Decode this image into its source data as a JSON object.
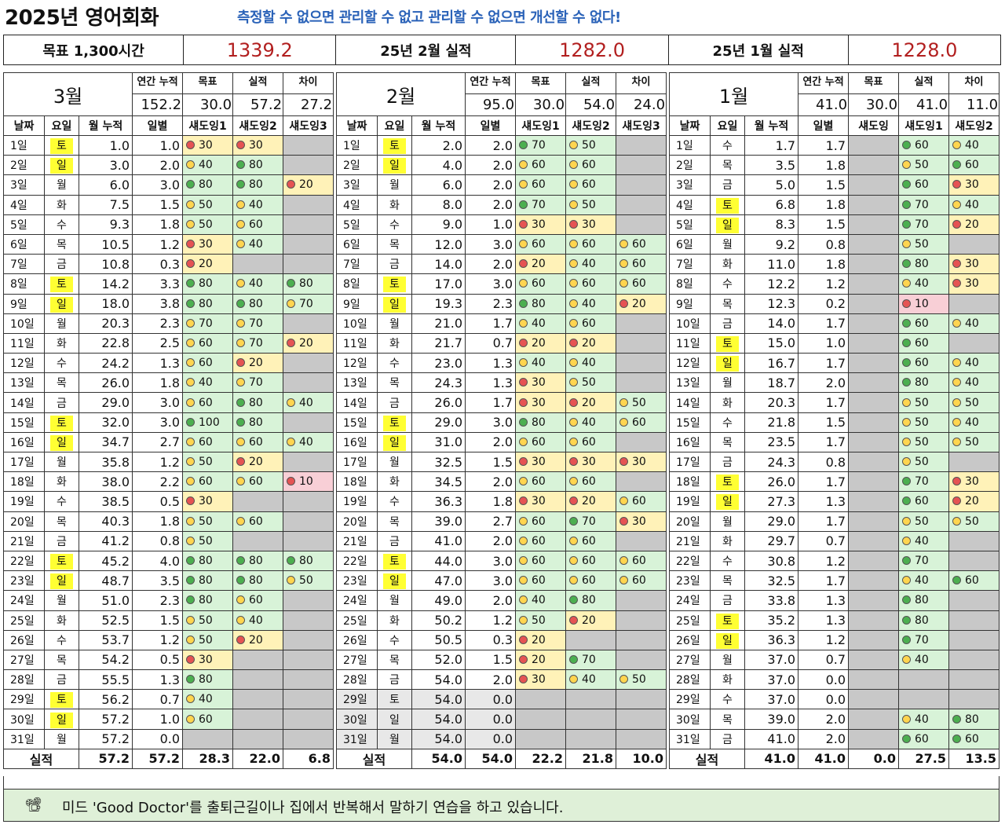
{
  "title": "2025년 영어회화",
  "slogan": "측정할 수 없으면 관리할 수 없고 관리할 수 없으면 개선할 수 없다!",
  "summary": {
    "goal_label": "목표 1,300시간",
    "goal_value": "1339.2",
    "feb_label": "25년 2월 실적",
    "feb_value": "1282.0",
    "jan_label": "25년 1월 실적",
    "jan_value": "1228.0"
  },
  "headers": {
    "annual": "연간 누적",
    "goal": "목표",
    "actual": "실적",
    "diff": "차이",
    "date": "날짜",
    "dow": "요일",
    "monthcum": "월 누적",
    "daily": "일별",
    "total": "실적"
  },
  "months": [
    {
      "name": "3월",
      "annual": "152.2",
      "goal": "30.0",
      "actual": "57.2",
      "diff": "27.2",
      "shadow_headers": [
        "섀도잉1",
        "섀도잉2",
        "섀도잉3"
      ],
      "totals": [
        "57.2",
        "57.2",
        "28.3",
        "22.0",
        "6.8"
      ],
      "rows": [
        [
          "1일",
          "토",
          "1.0",
          "1.0",
          "r30",
          "r30",
          ""
        ],
        [
          "2일",
          "일",
          "3.0",
          "2.0",
          "y40",
          "g80",
          ""
        ],
        [
          "3일",
          "월",
          "6.0",
          "3.0",
          "g80",
          "g80",
          "r20"
        ],
        [
          "4일",
          "화",
          "7.5",
          "1.5",
          "y50",
          "y40",
          ""
        ],
        [
          "5일",
          "수",
          "9.3",
          "1.8",
          "y50",
          "y60",
          ""
        ],
        [
          "6일",
          "목",
          "10.5",
          "1.2",
          "r30",
          "y40",
          ""
        ],
        [
          "7일",
          "금",
          "10.8",
          "0.3",
          "r20",
          "",
          ""
        ],
        [
          "8일",
          "토",
          "14.2",
          "3.3",
          "g80",
          "y40",
          "g80"
        ],
        [
          "9일",
          "일",
          "18.0",
          "3.8",
          "g80",
          "g80",
          "y70"
        ],
        [
          "10일",
          "월",
          "20.3",
          "2.3",
          "y70",
          "y70",
          ""
        ],
        [
          "11일",
          "화",
          "22.8",
          "2.5",
          "y60",
          "y70",
          "r20"
        ],
        [
          "12일",
          "수",
          "24.2",
          "1.3",
          "y60",
          "r20",
          ""
        ],
        [
          "13일",
          "목",
          "26.0",
          "1.8",
          "y40",
          "y70",
          ""
        ],
        [
          "14일",
          "금",
          "29.0",
          "3.0",
          "y60",
          "g80",
          "y40"
        ],
        [
          "15일",
          "토",
          "32.0",
          "3.0",
          "g100",
          "g80",
          ""
        ],
        [
          "16일",
          "일",
          "34.7",
          "2.7",
          "y60",
          "y60",
          "y40"
        ],
        [
          "17일",
          "월",
          "35.8",
          "1.2",
          "y50",
          "r20",
          ""
        ],
        [
          "18일",
          "화",
          "38.0",
          "2.2",
          "y60",
          "y60",
          "r10"
        ],
        [
          "19일",
          "수",
          "38.5",
          "0.5",
          "r30",
          "",
          ""
        ],
        [
          "20일",
          "목",
          "40.3",
          "1.8",
          "y50",
          "y60",
          ""
        ],
        [
          "21일",
          "금",
          "41.2",
          "0.8",
          "y50",
          "",
          ""
        ],
        [
          "22일",
          "토",
          "45.2",
          "4.0",
          "g80",
          "g80",
          "g80"
        ],
        [
          "23일",
          "일",
          "48.7",
          "3.5",
          "g80",
          "g80",
          "y50"
        ],
        [
          "24일",
          "월",
          "51.0",
          "2.3",
          "g80",
          "y60",
          ""
        ],
        [
          "25일",
          "화",
          "52.5",
          "1.5",
          "y50",
          "y40",
          ""
        ],
        [
          "26일",
          "수",
          "53.7",
          "1.2",
          "y50",
          "r20",
          ""
        ],
        [
          "27일",
          "목",
          "54.2",
          "0.5",
          "r30",
          "",
          ""
        ],
        [
          "28일",
          "금",
          "55.5",
          "1.3",
          "g80",
          "",
          ""
        ],
        [
          "29일",
          "토",
          "56.2",
          "0.7",
          "y40",
          "",
          ""
        ],
        [
          "30일",
          "일",
          "57.2",
          "1.0",
          "y60",
          "",
          ""
        ],
        [
          "31일",
          "월",
          "57.2",
          "0.0",
          "",
          "",
          ""
        ]
      ]
    },
    {
      "name": "2월",
      "annual": "95.0",
      "goal": "30.0",
      "actual": "54.0",
      "diff": "24.0",
      "shadow_headers": [
        "섀도잉1",
        "섀도잉2",
        "섀도잉3"
      ],
      "totals": [
        "54.0",
        "54.0",
        "22.2",
        "21.8",
        "10.0"
      ],
      "rows": [
        [
          "1일",
          "토",
          "2.0",
          "2.0",
          "g70",
          "y50",
          ""
        ],
        [
          "2일",
          "일",
          "4.0",
          "2.0",
          "y60",
          "y60",
          ""
        ],
        [
          "3일",
          "월",
          "6.0",
          "2.0",
          "y60",
          "y60",
          ""
        ],
        [
          "4일",
          "화",
          "8.0",
          "2.0",
          "g70",
          "y50",
          ""
        ],
        [
          "5일",
          "수",
          "9.0",
          "1.0",
          "r30",
          "r30",
          ""
        ],
        [
          "6일",
          "목",
          "12.0",
          "3.0",
          "y60",
          "y60",
          "y60"
        ],
        [
          "7일",
          "금",
          "14.0",
          "2.0",
          "r20",
          "y40",
          "y60"
        ],
        [
          "8일",
          "토",
          "17.0",
          "3.0",
          "y60",
          "y60",
          "y60"
        ],
        [
          "9일",
          "일",
          "19.3",
          "2.3",
          "g80",
          "y40",
          "r20"
        ],
        [
          "10일",
          "월",
          "21.0",
          "1.7",
          "y40",
          "y60",
          ""
        ],
        [
          "11일",
          "화",
          "21.7",
          "0.7",
          "r20",
          "r20",
          ""
        ],
        [
          "12일",
          "수",
          "23.0",
          "1.3",
          "y40",
          "y40",
          ""
        ],
        [
          "13일",
          "목",
          "24.3",
          "1.3",
          "r30",
          "y50",
          ""
        ],
        [
          "14일",
          "금",
          "26.0",
          "1.7",
          "r30",
          "r20",
          "y50"
        ],
        [
          "15일",
          "토",
          "29.0",
          "3.0",
          "g80",
          "y40",
          "y60"
        ],
        [
          "16일",
          "일",
          "31.0",
          "2.0",
          "y60",
          "y60",
          ""
        ],
        [
          "17일",
          "월",
          "32.5",
          "1.5",
          "r30",
          "r30",
          "r30"
        ],
        [
          "18일",
          "화",
          "34.5",
          "2.0",
          "y60",
          "y60",
          ""
        ],
        [
          "19일",
          "수",
          "36.3",
          "1.8",
          "r30",
          "r20",
          "y60"
        ],
        [
          "20일",
          "목",
          "39.0",
          "2.7",
          "y60",
          "g70",
          "r30"
        ],
        [
          "21일",
          "금",
          "41.0",
          "2.0",
          "y60",
          "y60",
          ""
        ],
        [
          "22일",
          "토",
          "44.0",
          "3.0",
          "y60",
          "y60",
          "y60"
        ],
        [
          "23일",
          "일",
          "47.0",
          "3.0",
          "y60",
          "y60",
          "y60"
        ],
        [
          "24일",
          "월",
          "49.0",
          "2.0",
          "y40",
          "g80",
          ""
        ],
        [
          "25일",
          "화",
          "50.2",
          "1.2",
          "y50",
          "r20",
          ""
        ],
        [
          "26일",
          "수",
          "50.5",
          "0.3",
          "r20",
          "",
          ""
        ],
        [
          "27일",
          "목",
          "52.0",
          "1.5",
          "r20",
          "g70",
          ""
        ],
        [
          "28일",
          "금",
          "54.0",
          "2.0",
          "r30",
          "y40",
          "y50"
        ],
        [
          "29일",
          "토",
          "54.0",
          "0.0",
          "",
          "",
          ""
        ],
        [
          "30일",
          "일",
          "54.0",
          "0.0",
          "",
          "",
          ""
        ],
        [
          "31일",
          "월",
          "54.0",
          "0.0",
          "",
          "",
          ""
        ]
      ]
    },
    {
      "name": "1월",
      "annual": "41.0",
      "goal": "30.0",
      "actual": "41.0",
      "diff": "11.0",
      "shadow_headers": [
        "섀도잉",
        "섀도잉1",
        "섀도잉2"
      ],
      "totals": [
        "41.0",
        "41.0",
        "0.0",
        "27.5",
        "13.5"
      ],
      "rows": [
        [
          "1일",
          "수",
          "1.7",
          "1.7",
          "",
          "g60",
          "y40"
        ],
        [
          "2일",
          "목",
          "3.5",
          "1.8",
          "",
          "y50",
          "g60"
        ],
        [
          "3일",
          "금",
          "5.0",
          "1.5",
          "",
          "g60",
          "r30"
        ],
        [
          "4일",
          "토",
          "6.8",
          "1.8",
          "",
          "g70",
          "y40"
        ],
        [
          "5일",
          "일",
          "8.3",
          "1.5",
          "",
          "g70",
          "r20"
        ],
        [
          "6일",
          "월",
          "9.2",
          "0.8",
          "",
          "y50",
          ""
        ],
        [
          "7일",
          "화",
          "11.0",
          "1.8",
          "",
          "g80",
          "r30"
        ],
        [
          "8일",
          "수",
          "12.2",
          "1.2",
          "",
          "y40",
          "r30"
        ],
        [
          "9일",
          "목",
          "12.3",
          "0.2",
          "",
          "r10",
          ""
        ],
        [
          "10일",
          "금",
          "14.0",
          "1.7",
          "",
          "g60",
          "y40"
        ],
        [
          "11일",
          "토",
          "15.0",
          "1.0",
          "",
          "g60",
          ""
        ],
        [
          "12일",
          "일",
          "16.7",
          "1.7",
          "",
          "g60",
          "y40"
        ],
        [
          "13일",
          "월",
          "18.7",
          "2.0",
          "",
          "g80",
          "y40"
        ],
        [
          "14일",
          "화",
          "20.3",
          "1.7",
          "",
          "y50",
          "y50"
        ],
        [
          "15일",
          "수",
          "21.8",
          "1.5",
          "",
          "y50",
          "y40"
        ],
        [
          "16일",
          "목",
          "23.5",
          "1.7",
          "",
          "y50",
          "y50"
        ],
        [
          "17일",
          "금",
          "24.3",
          "0.8",
          "",
          "y50",
          ""
        ],
        [
          "18일",
          "토",
          "26.0",
          "1.7",
          "",
          "g70",
          "r30"
        ],
        [
          "19일",
          "일",
          "27.3",
          "1.3",
          "",
          "g60",
          "r20"
        ],
        [
          "20일",
          "월",
          "29.0",
          "1.7",
          "",
          "y50",
          "y50"
        ],
        [
          "21일",
          "화",
          "29.7",
          "0.7",
          "",
          "y40",
          ""
        ],
        [
          "22일",
          "수",
          "30.8",
          "1.2",
          "",
          "g70",
          ""
        ],
        [
          "23일",
          "목",
          "32.5",
          "1.7",
          "",
          "y40",
          "g60"
        ],
        [
          "24일",
          "금",
          "33.8",
          "1.3",
          "",
          "g80",
          ""
        ],
        [
          "25일",
          "토",
          "35.2",
          "1.3",
          "",
          "g80",
          ""
        ],
        [
          "26일",
          "일",
          "36.3",
          "1.2",
          "",
          "g70",
          ""
        ],
        [
          "27일",
          "월",
          "37.0",
          "0.7",
          "",
          "y40",
          ""
        ],
        [
          "28일",
          "화",
          "37.0",
          "0.0",
          "",
          "",
          ""
        ],
        [
          "29일",
          "수",
          "37.0",
          "0.0",
          "",
          "",
          ""
        ],
        [
          "30일",
          "목",
          "39.0",
          "2.0",
          "",
          "y40",
          "g80"
        ],
        [
          "31일",
          "금",
          "41.0",
          "2.0",
          "",
          "g60",
          "g60"
        ]
      ]
    }
  ],
  "weekend_days": [
    "토",
    "일"
  ],
  "note": {
    "icon": "film-projector-icon",
    "icon_glyph": "📽",
    "text": "미드 'Good Doctor'를 출퇴근길이나 집에서 반복해서 말하기 연습을 하고 있습니다."
  }
}
